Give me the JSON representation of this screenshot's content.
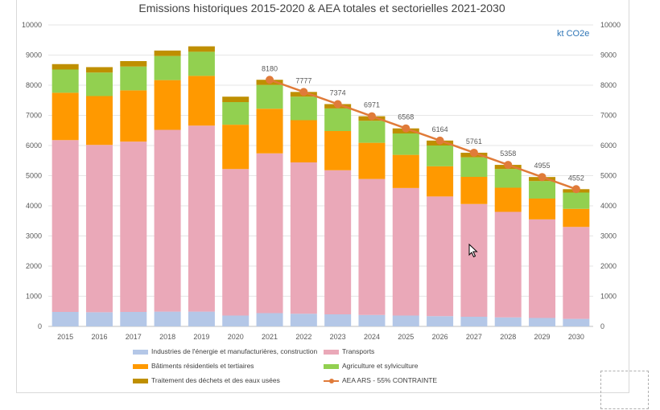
{
  "chart_data": {
    "type": "bar",
    "stacked": true,
    "title": "Emissions historiques 2015-2020 & AEA totales et sectorielles 2021-2030",
    "unit_label": "kt CO2e",
    "categories": [
      "2015",
      "2016",
      "2017",
      "2018",
      "2019",
      "2020",
      "2021",
      "2022",
      "2023",
      "2024",
      "2025",
      "2026",
      "2027",
      "2028",
      "2029",
      "2030"
    ],
    "ylim": [
      0,
      10000
    ],
    "yticks": [
      "0",
      "1000",
      "2000",
      "3000",
      "4000",
      "5000",
      "6000",
      "7000",
      "8000",
      "9000",
      "10000"
    ],
    "grid": true,
    "legend_position": "bottom",
    "series": [
      {
        "name": "Industries de l'énergie et manufacturières, construction",
        "color": "#b4c7e7",
        "values": [
          480,
          470,
          480,
          490,
          490,
          360,
          440,
          420,
          400,
          380,
          360,
          340,
          320,
          300,
          280,
          250
        ]
      },
      {
        "name": "Transports",
        "color": "#eaa8b8",
        "values": [
          5700,
          5550,
          5650,
          6030,
          6170,
          4860,
          5300,
          5020,
          4780,
          4510,
          4230,
          3970,
          3740,
          3500,
          3270,
          3050
        ]
      },
      {
        "name": "Bâtiments résidentiels et tertiaires",
        "color": "#ff9900",
        "values": [
          1570,
          1620,
          1700,
          1650,
          1650,
          1470,
          1480,
          1400,
          1300,
          1200,
          1100,
          1000,
          900,
          800,
          690,
          600
        ]
      },
      {
        "name": "Agriculture et sylviculture",
        "color": "#92d050",
        "values": [
          770,
          780,
          790,
          800,
          800,
          750,
          790,
          780,
          750,
          730,
          710,
          690,
          650,
          620,
          580,
          540
        ]
      },
      {
        "name": "Traitement des déchets et des eaux usées",
        "color": "#bf8f00",
        "values": [
          180,
          180,
          180,
          180,
          180,
          180,
          170,
          157,
          144,
          151,
          168,
          164,
          151,
          138,
          135,
          112
        ]
      }
    ],
    "line_series": {
      "name": "AEA ARS - 55% CONTRAINTE",
      "color": "#e07b39",
      "x": [
        "2021",
        "2022",
        "2023",
        "2024",
        "2025",
        "2026",
        "2027",
        "2028",
        "2029",
        "2030"
      ],
      "values": [
        8180,
        7777,
        7374,
        6971,
        6568,
        6164,
        5761,
        5358,
        4955,
        4552
      ],
      "labels": [
        "8180",
        "7777",
        "7374",
        "6971",
        "6568",
        "6164",
        "5761",
        "5358",
        "4955",
        "4552"
      ]
    }
  }
}
